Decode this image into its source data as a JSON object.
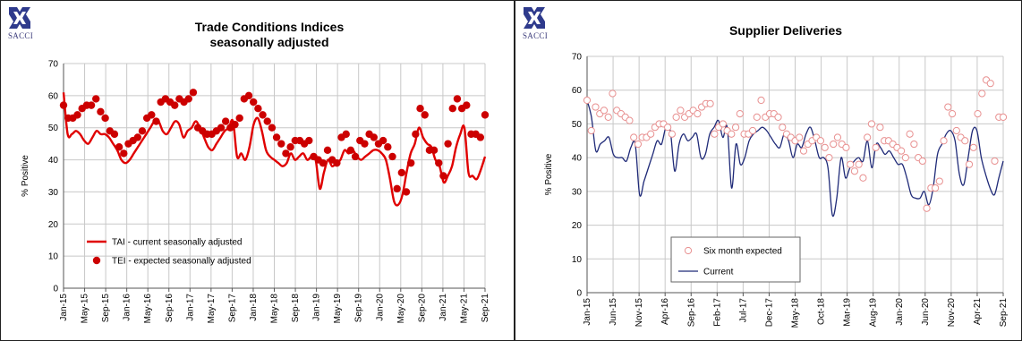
{
  "logo": {
    "text": "SACCI"
  },
  "chart_data": [
    {
      "type": "line",
      "title": "Trade Conditions Indices",
      "subtitle": "seasonally adjusted",
      "ylabel": "% Positive",
      "ylim": [
        0,
        70
      ],
      "yticks": [
        0,
        10,
        20,
        30,
        40,
        50,
        60,
        70
      ],
      "grid": true,
      "legend_position": "bottom-left",
      "colors": {
        "line": "#e00000",
        "markers": "#cc0000",
        "grid": "#c8c8c8"
      },
      "xtick_labels": [
        "Jan-15",
        "May-15",
        "Sep-15",
        "Jan-16",
        "May-16",
        "Sep-16",
        "Jan-17",
        "May-17",
        "Sep-17",
        "Jan-18",
        "May-18",
        "Sep-18",
        "Jan-19",
        "May-19",
        "Sep-19",
        "Jan-20",
        "May-20",
        "Sep-20",
        "Jan-21",
        "May-21",
        "Sep-21"
      ],
      "series": [
        {
          "name": "TAI - current seasonally adjusted",
          "style": "line",
          "values": [
            61,
            48,
            48,
            49,
            48,
            46,
            45,
            47,
            49,
            48,
            48,
            47,
            45,
            43,
            40,
            39,
            40,
            42,
            44,
            46,
            48,
            50,
            52,
            52,
            49,
            48,
            50,
            52,
            51,
            47,
            49,
            50,
            52,
            50,
            47,
            44,
            43,
            45,
            47,
            49,
            50,
            52,
            41,
            42,
            40,
            44,
            51,
            53,
            49,
            43,
            41,
            40,
            39,
            38,
            39,
            42,
            40,
            41,
            42,
            40,
            41,
            40,
            31,
            36,
            40,
            38,
            39,
            40,
            43,
            42,
            43,
            41,
            40,
            41,
            42,
            43,
            43,
            42,
            40,
            34,
            27,
            26,
            29,
            36,
            42,
            45,
            50,
            47,
            45,
            44,
            40,
            38,
            33,
            35,
            38,
            44,
            48,
            50,
            36,
            35,
            34,
            37,
            41
          ]
        },
        {
          "name": "TEI - expected seasonally adjusted",
          "style": "markers",
          "values": [
            57,
            53,
            53,
            54,
            56,
            57,
            57,
            59,
            55,
            53,
            49,
            48,
            44,
            42,
            45,
            46,
            47,
            49,
            53,
            54,
            52,
            58,
            59,
            58,
            57,
            59,
            58,
            59,
            61,
            50,
            49,
            48,
            48,
            49,
            50,
            52,
            50,
            51,
            53,
            59,
            60,
            58,
            56,
            54,
            52,
            50,
            47,
            45,
            42,
            44,
            46,
            46,
            45,
            46,
            41,
            40,
            39,
            43,
            40,
            39,
            47,
            48,
            43,
            41,
            46,
            45,
            48,
            47,
            45,
            46,
            44,
            41,
            31,
            36,
            30,
            39,
            48,
            56,
            54,
            43,
            43,
            39,
            35,
            45,
            56,
            59,
            56,
            57,
            48,
            48,
            47,
            54
          ]
        }
      ]
    },
    {
      "type": "line",
      "title": "Supplier Deliveries",
      "ylabel": "% Positive",
      "ylim": [
        0,
        70
      ],
      "yticks": [
        0,
        10,
        20,
        30,
        40,
        50,
        60,
        70
      ],
      "grid": true,
      "legend_position": "bottom-left",
      "colors": {
        "line": "#1f2a78",
        "markers": "#e89090",
        "grid": "#c8c8c8"
      },
      "xtick_labels": [
        "Jan-15",
        "Jun-15",
        "Nov-15",
        "Apr-16",
        "Sep-16",
        "Feb-17",
        "Jul-17",
        "Dec-17",
        "May-18",
        "Oct-18",
        "Mar-19",
        "Aug-19",
        "Jan-20",
        "Jun-20",
        "Nov-20",
        "Apr-21",
        "Sep-21"
      ],
      "series": [
        {
          "name": "Six month expected",
          "style": "markers",
          "values": [
            57,
            48,
            55,
            53,
            54,
            52,
            59,
            54,
            53,
            52,
            51,
            46,
            44,
            46,
            46,
            47,
            49,
            50,
            50,
            49,
            47,
            52,
            54,
            52,
            53,
            54,
            53,
            55,
            56,
            56,
            47,
            49,
            50,
            48,
            47,
            49,
            53,
            47,
            47,
            48,
            52,
            57,
            52,
            53,
            53,
            52,
            49,
            47,
            46,
            45,
            46,
            42,
            44,
            45,
            46,
            45,
            43,
            40,
            44,
            46,
            44,
            43,
            38,
            36,
            38,
            34,
            46,
            50,
            43,
            49,
            45,
            45,
            44,
            43,
            42,
            40,
            47,
            44,
            40,
            39,
            25,
            31,
            31,
            33,
            45,
            55,
            53,
            48,
            46,
            45,
            38,
            43,
            53,
            59,
            63,
            62,
            39,
            52,
            52
          ]
        },
        {
          "name": "Current",
          "style": "line",
          "values": [
            57,
            52,
            42,
            44,
            45,
            46,
            41,
            40,
            40,
            39,
            43,
            44,
            29,
            33,
            37,
            41,
            45,
            44,
            49,
            48,
            36,
            44,
            47,
            45,
            46,
            47,
            40,
            41,
            47,
            49,
            51,
            46,
            49,
            31,
            44,
            38,
            40,
            45,
            47,
            48,
            49,
            48,
            46,
            44,
            43,
            47,
            45,
            40,
            44,
            43,
            47,
            49,
            45,
            40,
            40,
            37,
            23,
            28,
            40,
            34,
            37,
            39,
            40,
            39,
            45,
            37,
            44,
            43,
            41,
            42,
            40,
            38,
            38,
            34,
            29,
            28,
            28,
            30,
            26,
            31,
            41,
            44,
            47,
            48,
            45,
            35,
            32,
            40,
            48,
            48,
            40,
            35,
            31,
            29,
            34,
            39
          ]
        }
      ]
    }
  ]
}
